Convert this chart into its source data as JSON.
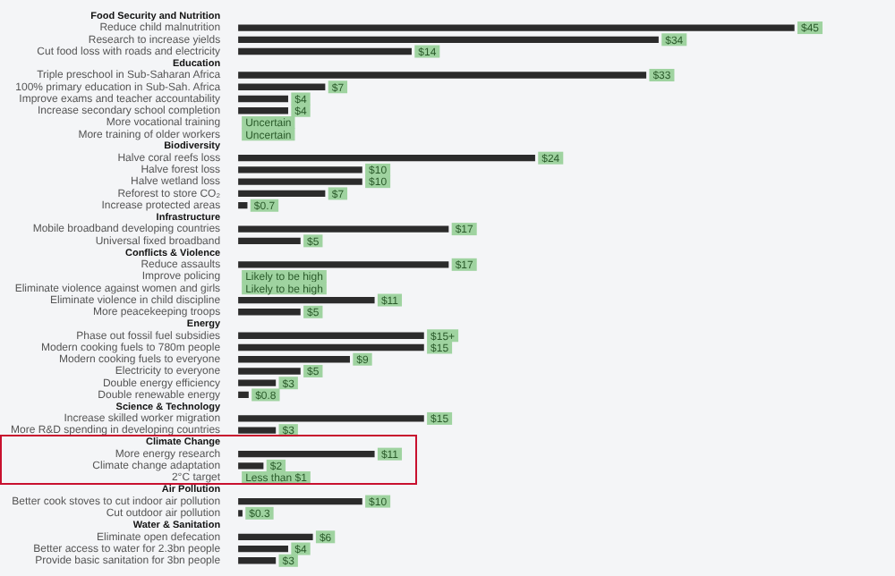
{
  "chart_data": {
    "type": "bar",
    "orientation": "horizontal",
    "color": "#2b2b2b",
    "grid": false,
    "legend": false,
    "tick_labels": "y",
    "categories": [
      "Food Security and Nutrition",
      "Reduce child malnutrition",
      "Research to increase yields",
      "Cut food loss with roads and electricity",
      "Education",
      "Triple preschool in Sub-Saharan Africa",
      "100% primary education in Sub-Sah. Africa",
      "Improve exams and teacher accountability",
      "Increase secondary school completion",
      "More vocational training",
      "More training of older workers",
      "Biodiversity",
      "Halve coral reefs loss",
      "Halve forest loss",
      "Halve wetland loss",
      "Reforest to store CO₂",
      "Increase protected areas",
      "Infrastructure",
      "Mobile broadband developing countries",
      "Universal fixed broadband",
      "Conflicts & Violence",
      "Reduce assaults",
      "Improve policing",
      "Eliminate violence against women and girls",
      "Eliminate violence in child discipline",
      "More peacekeeping troops",
      "Energy",
      "Phase out fossil fuel subsidies",
      "Modern cooking fuels to 780m people",
      "Modern cooking fuels to everyone",
      "Electricity to everyone",
      "Double energy efficiency",
      "Double renewable energy",
      "Science & Technology",
      "Increase skilled worker migration",
      "More R&D spending in developing countries",
      "Climate Change",
      "More energy research",
      "Climate change adaptation",
      "2°C target",
      "Air Pollution",
      "Better cook stoves to cut indoor air pollution",
      "Cut outdoor air pollution",
      "Water & Sanitation",
      "Eliminate open defecation",
      "Better access to water for 2.3bn people",
      "Provide basic sanitation for 3bn people"
    ],
    "values": [
      null,
      45,
      34,
      14,
      null,
      33,
      7,
      4,
      4,
      null,
      null,
      null,
      24,
      10,
      10,
      7,
      0.7,
      null,
      17,
      5,
      null,
      17,
      null,
      null,
      11,
      5,
      null,
      15,
      15,
      9,
      5,
      3,
      0.8,
      null,
      15,
      3,
      null,
      11,
      2,
      null,
      null,
      10,
      0.3,
      null,
      6,
      4,
      3
    ],
    "value_labels": [
      null,
      "$45",
      "$34",
      "$14",
      null,
      "$33",
      "$7",
      "$4",
      "$4",
      "Uncertain",
      "Uncertain",
      null,
      "$24",
      "$10",
      "$10",
      "$7",
      "$0.7",
      null,
      "$17",
      "$5",
      null,
      "$17",
      "Likely to be high",
      "Likely to be high",
      "$11",
      "$5",
      null,
      "$15+",
      "$15",
      "$9",
      "$5",
      "$3",
      "$0.8",
      null,
      "$15",
      "$3",
      null,
      "$11",
      "$2",
      "Less than $1",
      null,
      "$10",
      "$0.3",
      null,
      "$6",
      "$4",
      "$3"
    ]
  }
}
